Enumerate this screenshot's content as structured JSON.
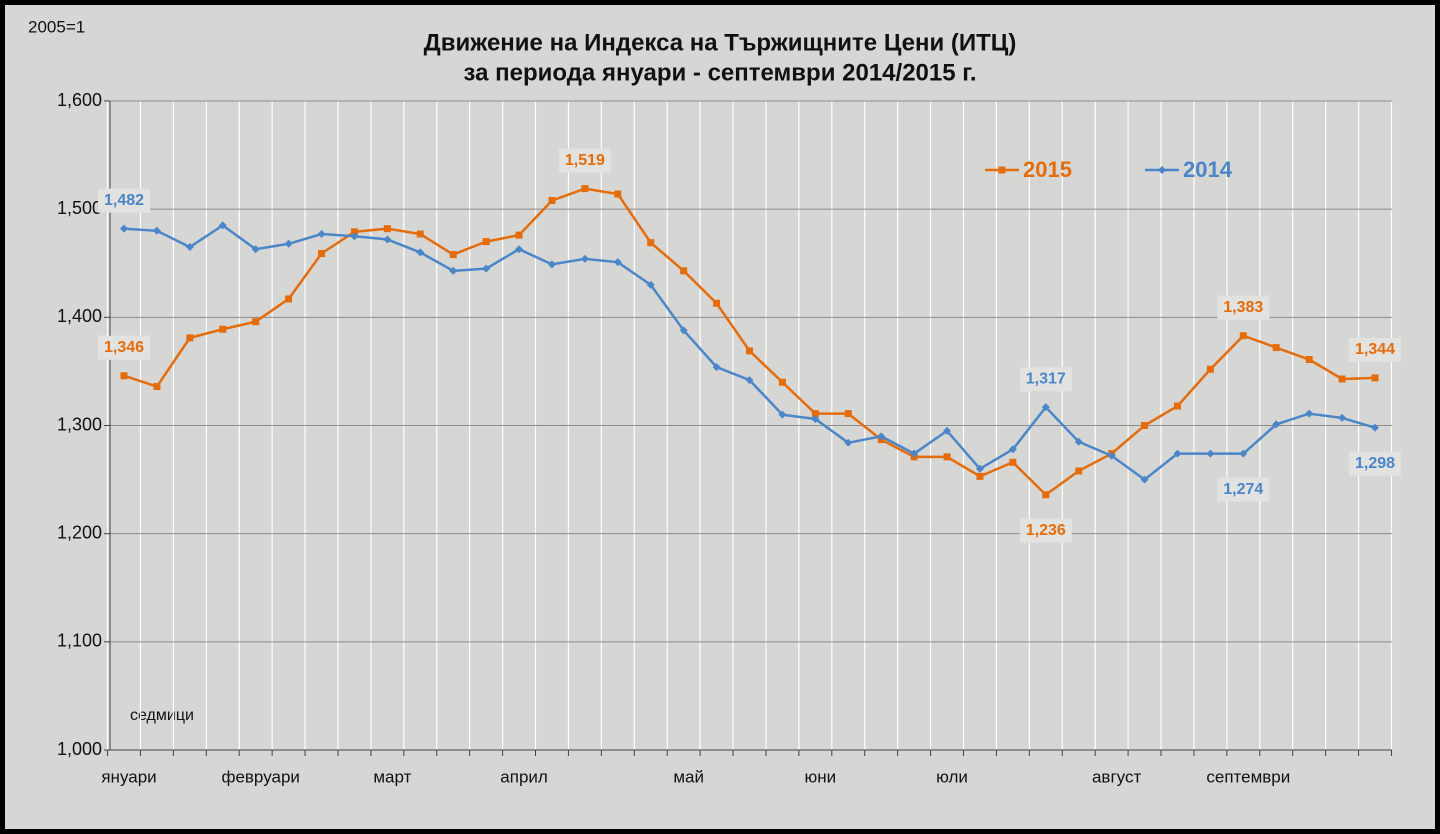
{
  "chart_data": {
    "type": "line",
    "title": "Движение на Индекса на Тържищните Цени (ИТЦ)",
    "subtitle": "за периода януари - септември 2014/2015 г.",
    "y_label": "2005=1",
    "x_label": "седмици",
    "categories": [
      "януари",
      null,
      null,
      null,
      "февруари",
      null,
      null,
      null,
      "март",
      null,
      null,
      null,
      "април",
      null,
      null,
      null,
      null,
      "май",
      null,
      null,
      null,
      "юни",
      null,
      null,
      null,
      "юли",
      null,
      null,
      null,
      null,
      "август",
      null,
      null,
      null,
      "септември",
      null,
      null,
      null,
      null
    ],
    "ylim": [
      1.0,
      1.6
    ],
    "yticks": [
      {
        "value": 1.0,
        "label": "1,000"
      },
      {
        "value": 1.1,
        "label": "1,100"
      },
      {
        "value": 1.2,
        "label": "1,200"
      },
      {
        "value": 1.3,
        "label": "1,300"
      },
      {
        "value": 1.4,
        "label": "1,400"
      },
      {
        "value": 1.5,
        "label": "1,500"
      },
      {
        "value": 1.6,
        "label": "1,600"
      }
    ],
    "grid": true,
    "legend": "top-right",
    "series": [
      {
        "name": "2015",
        "color": "#e46c0a",
        "marker": "square",
        "values": [
          1.346,
          1.336,
          1.381,
          1.389,
          1.396,
          1.417,
          1.459,
          1.479,
          1.482,
          1.477,
          1.458,
          1.47,
          1.476,
          1.508,
          1.519,
          1.514,
          1.469,
          1.443,
          1.413,
          1.369,
          1.34,
          1.311,
          1.311,
          1.287,
          1.271,
          1.271,
          1.253,
          1.266,
          1.236,
          1.258,
          1.274,
          1.3,
          1.318,
          1.352,
          1.383,
          1.372,
          1.361,
          1.343,
          1.344
        ],
        "value_labels": [
          "1,346",
          null,
          null,
          null,
          null,
          null,
          null,
          null,
          null,
          null,
          null,
          null,
          null,
          null,
          "1,519",
          null,
          null,
          null,
          null,
          null,
          null,
          null,
          null,
          null,
          null,
          null,
          null,
          null,
          "1,236",
          null,
          null,
          null,
          null,
          null,
          "1,383",
          null,
          null,
          null,
          "1,344"
        ]
      },
      {
        "name": "2014",
        "color": "#4a86c8",
        "marker": "diamond",
        "values": [
          1.482,
          1.48,
          1.465,
          1.485,
          1.463,
          1.468,
          1.477,
          1.475,
          1.472,
          1.46,
          1.443,
          1.445,
          1.463,
          1.449,
          1.454,
          1.451,
          1.43,
          1.388,
          1.354,
          1.342,
          1.31,
          1.306,
          1.284,
          1.29,
          1.274,
          1.295,
          1.26,
          1.278,
          1.317,
          1.285,
          1.272,
          1.25,
          1.274,
          1.274,
          1.274,
          1.301,
          1.311,
          1.307,
          1.298
        ],
        "value_labels": [
          "1,482",
          null,
          null,
          null,
          null,
          null,
          null,
          null,
          null,
          null,
          null,
          null,
          null,
          null,
          null,
          null,
          null,
          null,
          null,
          null,
          null,
          null,
          null,
          null,
          null,
          null,
          null,
          null,
          "1,317",
          null,
          null,
          null,
          null,
          null,
          "1,274",
          null,
          null,
          null,
          "1,298"
        ]
      }
    ]
  }
}
